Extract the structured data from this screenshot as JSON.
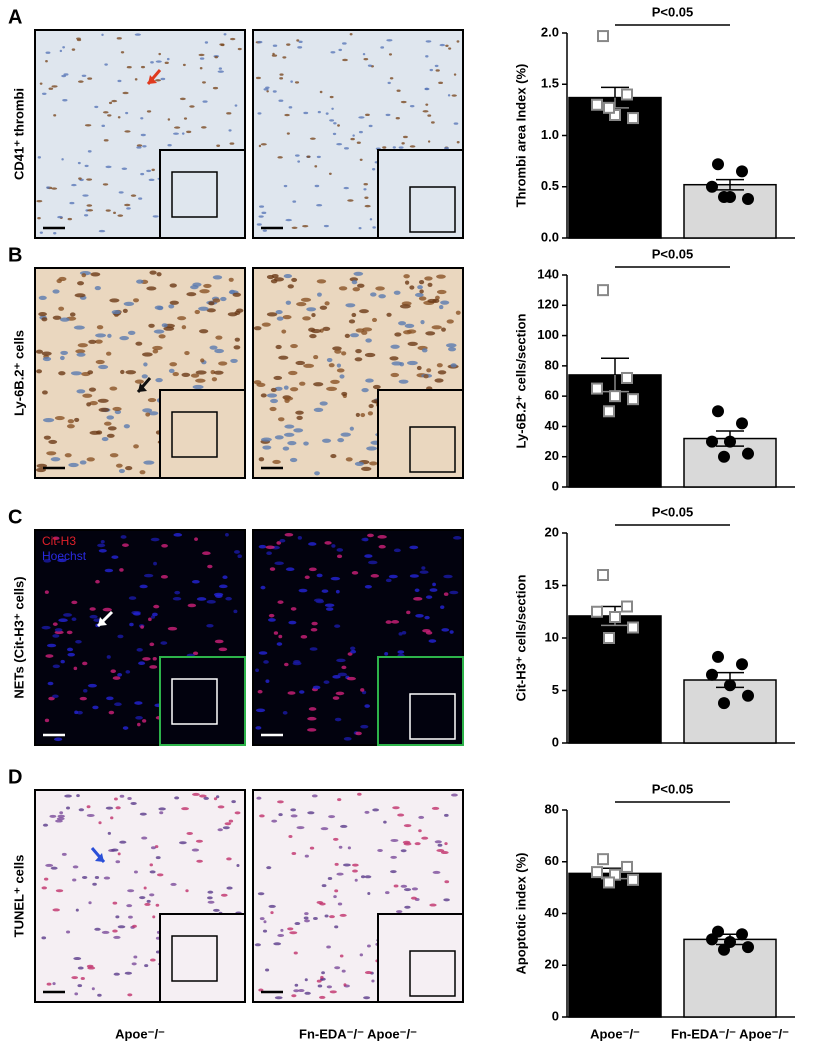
{
  "panels": [
    {
      "letter": "A",
      "label": "CD41⁺ thrombi"
    },
    {
      "letter": "B",
      "label": "Ly-6B.2⁺ cells"
    },
    {
      "letter": "C",
      "label": "NETs (Cit-H3⁺ cells)"
    },
    {
      "letter": "D",
      "label": "TUNEL⁺ cells"
    }
  ],
  "nets_legend": [
    "Cit-H3",
    "Hoechst"
  ],
  "columns": [
    "Apoe⁻/⁻",
    "Fn-EDA⁻/⁻ Apoe⁻/⁻"
  ],
  "chart_data": [
    {
      "type": "bar",
      "y_label": "Thrombi area Index (%)",
      "annotation": "P<0.05",
      "categories": [
        null,
        null
      ],
      "values": [
        1.37,
        0.52
      ],
      "errors": [
        0.1,
        0.05
      ],
      "colors": [
        "#000000",
        "#d9d9d9"
      ],
      "point_markers": [
        "open-square",
        "filled-circle"
      ],
      "points": [
        [
          1.97,
          1.4,
          1.3,
          1.2,
          1.17,
          1.27
        ],
        [
          0.72,
          0.65,
          0.5,
          0.4,
          0.38,
          0.4
        ]
      ],
      "ylim": [
        0,
        2
      ],
      "yticks": [
        {
          "value": 0,
          "label": "0.0"
        },
        0.5,
        {
          "value": 1,
          "label": "1.0"
        },
        1.5,
        {
          "value": 2,
          "label": "2.0"
        }
      ]
    },
    {
      "type": "bar",
      "y_label": "Ly-6B.2⁺ cells/section",
      "annotation": "P<0.05",
      "categories": [
        null,
        null
      ],
      "values": [
        74,
        32
      ],
      "errors": [
        11,
        5
      ],
      "colors": [
        "#000000",
        "#d9d9d9"
      ],
      "point_markers": [
        "open-square",
        "filled-circle"
      ],
      "points": [
        [
          130,
          72,
          65,
          60,
          58,
          50
        ],
        [
          50,
          42,
          30,
          30,
          22,
          20
        ]
      ],
      "ylim": [
        0,
        140
      ],
      "yticks": [
        0,
        20,
        40,
        60,
        80,
        100,
        120,
        140
      ]
    },
    {
      "type": "bar",
      "y_label": "Cit-H3⁺ cells/section",
      "annotation": "P<0.05",
      "categories": [
        null,
        null
      ],
      "values": [
        12.1,
        6.0
      ],
      "errors": [
        0.9,
        0.7
      ],
      "colors": [
        "#000000",
        "#d9d9d9"
      ],
      "point_markers": [
        "open-square",
        "filled-circle"
      ],
      "points": [
        [
          16,
          13,
          12.5,
          12,
          11,
          10
        ],
        [
          8.2,
          7.5,
          6.5,
          5.5,
          4.5,
          3.8
        ]
      ],
      "ylim": [
        0,
        20
      ],
      "yticks": [
        0,
        5,
        10,
        15,
        20
      ]
    },
    {
      "type": "bar",
      "y_label": "Apoptotic index (%)",
      "annotation": "P<0.05",
      "categories": [
        "Apoe⁻/⁻",
        "Fn-EDA⁻/⁻ Apoe⁻/⁻"
      ],
      "values": [
        55.5,
        30
      ],
      "errors": [
        2,
        2
      ],
      "colors": [
        "#000000",
        "#d9d9d9"
      ],
      "point_markers": [
        "open-square",
        "filled-circle"
      ],
      "points": [
        [
          61,
          58,
          56,
          55,
          53,
          52
        ],
        [
          33,
          32,
          30,
          29,
          27,
          26
        ]
      ],
      "ylim": [
        0,
        80
      ],
      "yticks": [
        0,
        20,
        40,
        60,
        80
      ]
    }
  ]
}
